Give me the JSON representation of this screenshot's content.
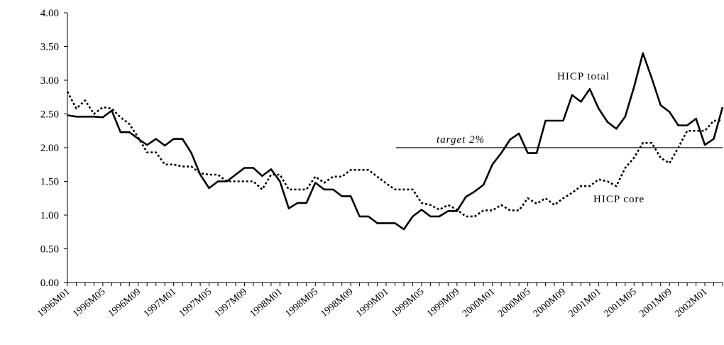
{
  "chart_data": {
    "type": "line",
    "categories": [
      "1996M01",
      null,
      null,
      null,
      "1996M05",
      null,
      null,
      null,
      "1996M09",
      null,
      null,
      null,
      "1997M01",
      null,
      null,
      null,
      "1997M05",
      null,
      null,
      null,
      "1997M09",
      null,
      null,
      null,
      "1998M01",
      null,
      null,
      null,
      "1998M05",
      null,
      null,
      null,
      "1998M09",
      null,
      null,
      null,
      "1999M01",
      null,
      null,
      null,
      "1999M05",
      null,
      null,
      null,
      "1999M09",
      null,
      null,
      null,
      "2000M01",
      null,
      null,
      null,
      "2000M05",
      null,
      null,
      null,
      "2000M09",
      null,
      null,
      null,
      "2001M01",
      null,
      null,
      null,
      "2001M05",
      null,
      null,
      null,
      "2001M09",
      null,
      null,
      null,
      "2002M01",
      null,
      null
    ],
    "series": [
      {
        "name": "HICP total",
        "color": "#000000",
        "style": "solid",
        "values": [
          2.48,
          2.46,
          2.46,
          2.46,
          2.45,
          2.55,
          2.23,
          2.23,
          2.13,
          2.04,
          2.13,
          2.03,
          2.13,
          2.13,
          1.92,
          1.6,
          1.4,
          1.5,
          1.5,
          1.6,
          1.7,
          1.7,
          1.58,
          1.68,
          1.5,
          1.1,
          1.18,
          1.18,
          1.48,
          1.38,
          1.38,
          1.28,
          1.28,
          0.98,
          0.98,
          0.88,
          0.88,
          0.88,
          0.79,
          0.98,
          1.08,
          0.98,
          0.98,
          1.06,
          1.06,
          1.27,
          1.35,
          1.45,
          1.75,
          1.92,
          2.12,
          2.21,
          1.92,
          1.92,
          2.4,
          2.4,
          2.4,
          2.78,
          2.68,
          2.87,
          2.58,
          2.38,
          2.28,
          2.46,
          2.9,
          3.4,
          3.03,
          2.63,
          2.53,
          2.33,
          2.33,
          2.43,
          2.04,
          2.13,
          2.6
        ]
      },
      {
        "name": "HICP core",
        "color": "#000000",
        "style": "dotted",
        "values": [
          2.83,
          2.58,
          2.7,
          2.5,
          2.6,
          2.58,
          2.45,
          2.35,
          2.15,
          1.93,
          1.93,
          1.75,
          1.75,
          1.72,
          1.72,
          1.62,
          1.6,
          1.6,
          1.5,
          1.5,
          1.5,
          1.5,
          1.38,
          1.6,
          1.6,
          1.38,
          1.38,
          1.38,
          1.57,
          1.48,
          1.57,
          1.57,
          1.67,
          1.67,
          1.67,
          1.57,
          1.47,
          1.38,
          1.38,
          1.38,
          1.18,
          1.15,
          1.08,
          1.15,
          1.08,
          0.98,
          0.98,
          1.07,
          1.07,
          1.15,
          1.07,
          1.07,
          1.25,
          1.17,
          1.25,
          1.15,
          1.25,
          1.33,
          1.43,
          1.43,
          1.53,
          1.5,
          1.43,
          1.7,
          1.85,
          2.07,
          2.07,
          1.85,
          1.77,
          2.0,
          2.25,
          2.25,
          2.25,
          2.4,
          2.4
        ]
      }
    ],
    "target": {
      "value": 2,
      "label": "target 2%"
    },
    "ylim": [
      0,
      4
    ],
    "yticks": [
      {
        "value": 0,
        "label": "0.00"
      },
      {
        "value": 0.5,
        "label": "0.50"
      },
      {
        "value": 1,
        "label": "1.00"
      },
      {
        "value": 1.5,
        "label": "1.50"
      },
      {
        "value": 2,
        "label": "2.00"
      },
      {
        "value": 2.5,
        "label": "2.50"
      },
      {
        "value": 3,
        "label": "3.00"
      },
      {
        "value": 3.5,
        "label": "3.50"
      },
      {
        "value": 4,
        "label": "4.00"
      }
    ]
  }
}
